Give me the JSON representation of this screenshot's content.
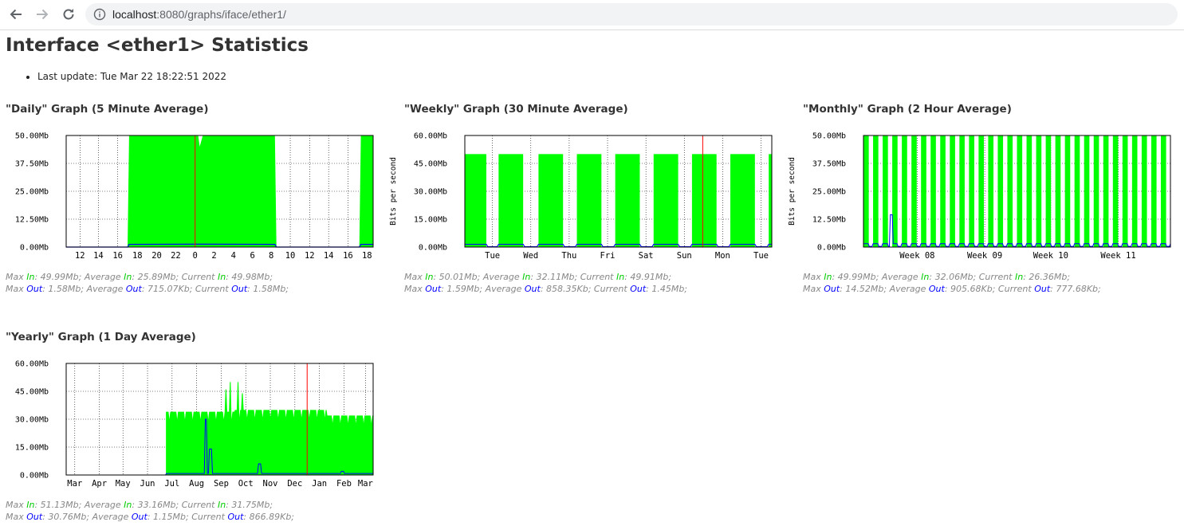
{
  "browser": {
    "url_host": "localhost",
    "url_path": ":8080/graphs/iface/ether1/"
  },
  "page": {
    "title": "Interface <ether1> Statistics",
    "last_update": "Last update: Tue Mar 22 18:22:51 2022"
  },
  "colors": {
    "in": "#00ff00",
    "out": "#0000ff",
    "marker": "#ff0000"
  },
  "graphs": [
    {
      "id": "daily",
      "heading": "\"Daily\" Graph (5 Minute Average)",
      "stats_labels": [
        "Max ",
        "In",
        ": 49.99Mb; Average ",
        "In",
        ": 25.89Mb; Current ",
        "In",
        ": 49.98Mb;"
      ],
      "stats_in": [
        "Max ",
        "In",
        ": 49.99Mb; Average ",
        "In",
        ": 25.89Mb; Current ",
        "In",
        ": 49.98Mb;"
      ],
      "stats_out": [
        "Max ",
        "Out",
        ": 1.58Mb; Average ",
        "Out",
        ": 715.07Kb; Current ",
        "Out",
        ": 1.58Mb;"
      ],
      "chart_data": {
        "type": "area",
        "ylabel": "",
        "y_ticks": [
          "0.00Mb",
          "12.50Mb",
          "25.00Mb",
          "37.50Mb",
          "50.00Mb"
        ],
        "ylim": [
          0,
          50
        ],
        "x_ticks": [
          "12",
          "14",
          "16",
          "18",
          "20",
          "22",
          "0",
          "2",
          "4",
          "6",
          "8",
          "10",
          "12",
          "14",
          "16",
          "18"
        ],
        "series": [
          {
            "values": [
              [
                0,
                0
              ],
              [
                0.2,
                0
              ],
              [
                0.205,
                50
              ],
              [
                0.43,
                50
              ],
              [
                0.435,
                45
              ],
              [
                0.445,
                50
              ],
              [
                0.68,
                50
              ],
              [
                0.685,
                0
              ],
              [
                0.955,
                0
              ],
              [
                0.96,
                50
              ],
              [
                1,
                50
              ]
            ]
          },
          {
            "values": [
              [
                0,
                0
              ],
              [
                0.2,
                0
              ],
              [
                0.205,
                1.2
              ],
              [
                0.43,
                1.3
              ],
              [
                0.68,
                1.2
              ],
              [
                0.685,
                0
              ],
              [
                0.955,
                0
              ],
              [
                0.96,
                1.2
              ],
              [
                1,
                1.2
              ]
            ]
          }
        ],
        "marker_x": 0.42
      }
    },
    {
      "id": "weekly",
      "heading": "\"Weekly\" Graph (30 Minute Average)",
      "stats_in": [
        "Max ",
        "In",
        ": 50.01Mb; Average ",
        "In",
        ": 32.11Mb; Current ",
        "In",
        ": 49.91Mb;"
      ],
      "stats_out": [
        "Max ",
        "Out",
        ": 1.59Mb; Average ",
        "Out",
        ": 858.35Kb; Current ",
        "Out",
        ": 1.45Mb;"
      ],
      "chart_data": {
        "type": "area",
        "ylabel": "Bits per second",
        "y_ticks": [
          "0.00Mb",
          "15.00Mb",
          "30.00Mb",
          "45.00Mb",
          "60.00Mb"
        ],
        "ylim": [
          0,
          60
        ],
        "x_ticks": [
          "Tue",
          "Wed",
          "Thu",
          "Fri",
          "Sat",
          "Sun",
          "Mon",
          "Tue"
        ],
        "blocks": [
          [
            0.0,
            0.07
          ],
          [
            0.11,
            0.19
          ],
          [
            0.24,
            0.32
          ],
          [
            0.365,
            0.445
          ],
          [
            0.49,
            0.57
          ],
          [
            0.615,
            0.695
          ],
          [
            0.74,
            0.82
          ],
          [
            0.865,
            0.945
          ],
          [
            0.99,
            1.0
          ]
        ],
        "block_level": 50,
        "out_level": 1.5,
        "marker_x": 0.775
      }
    },
    {
      "id": "monthly",
      "heading": "\"Monthly\" Graph (2 Hour Average)",
      "stats_in": [
        "Max ",
        "In",
        ": 49.99Mb; Average ",
        "In",
        ": 32.06Mb; Current ",
        "In",
        ": 26.36Mb;"
      ],
      "stats_out": [
        "Max ",
        "Out",
        ": 14.52Mb; Average ",
        "Out",
        ": 905.68Kb; Current ",
        "Out",
        ": 777.68Kb;"
      ],
      "chart_data": {
        "type": "area",
        "ylabel": "Bits per second",
        "y_ticks": [
          "0.00Mb",
          "12.50Mb",
          "25.00Mb",
          "37.50Mb",
          "50.00Mb"
        ],
        "ylim": [
          0,
          50
        ],
        "x_ticks": [
          "Week 08",
          "Week 09",
          "Week 10",
          "Week 11"
        ],
        "spikes": 32,
        "spike_level": 50,
        "out_level": 1.5,
        "out_peak": {
          "at": 0.09,
          "value": 14.5
        }
      }
    },
    {
      "id": "yearly",
      "heading": "\"Yearly\" Graph (1 Day Average)",
      "stats_in": [
        "Max ",
        "In",
        ": 51.13Mb; Average ",
        "In",
        ": 33.16Mb; Current ",
        "In",
        ": 31.75Mb;"
      ],
      "stats_out": [
        "Max ",
        "Out",
        ": 30.76Mb; Average ",
        "Out",
        ": 1.15Mb; Current ",
        "Out",
        ": 866.89Kb;"
      ],
      "chart_data": {
        "type": "area",
        "ylabel": "",
        "y_ticks": [
          "0.00Mb",
          "15.00Mb",
          "30.00Mb",
          "45.00Mb",
          "60.00Mb"
        ],
        "ylim": [
          0,
          60
        ],
        "x_ticks": [
          "Mar",
          "Apr",
          "May",
          "Jun",
          "Jul",
          "Aug",
          "Sep",
          "Oct",
          "Nov",
          "Dec",
          "Jan",
          "Feb",
          "Mar"
        ],
        "in_start": 0.325,
        "in_level_a": 34,
        "in_level_b": 35,
        "in_level_c": 32,
        "in_peaks": [
          [
            0.52,
            46
          ],
          [
            0.535,
            50
          ],
          [
            0.56,
            50
          ],
          [
            0.575,
            44
          ]
        ],
        "out_peaks": [
          [
            0.455,
            30
          ],
          [
            0.47,
            14
          ],
          [
            0.63,
            6
          ],
          [
            0.9,
            2
          ]
        ],
        "marker_x": 0.785
      }
    }
  ]
}
